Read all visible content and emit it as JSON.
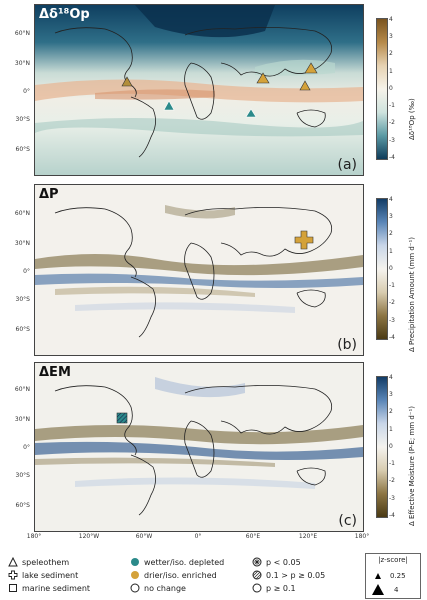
{
  "panels": [
    {
      "title": "Δδ¹⁸Op",
      "letter": "(a)",
      "cbar_label": "Δδ¹⁸Op (‰)",
      "cbar_ticks": [
        "4",
        "3",
        "2",
        "1",
        "0",
        "-1",
        "-2",
        "-3",
        "-4"
      ],
      "colors": {
        "pos": "#9a6a2a",
        "neg": "#0f4a6a"
      }
    },
    {
      "title": "ΔP",
      "letter": "(b)",
      "cbar_label": "Δ Precipitation Amount (mm d⁻¹)",
      "cbar_ticks": [
        "4",
        "3",
        "2",
        "1",
        "0",
        "-1",
        "-2",
        "-3",
        "-4"
      ],
      "colors": {
        "pos": "#123c66",
        "neg": "#5e4a1e"
      }
    },
    {
      "title": "ΔEM",
      "letter": "(c)",
      "cbar_label": "Δ Effective Moisture (P-E; mm d⁻¹)",
      "cbar_ticks": [
        "4",
        "3",
        "2",
        "1",
        "0",
        "-1",
        "-2",
        "-3",
        "-4"
      ],
      "colors": {
        "pos": "#123c66",
        "neg": "#5e4a1e"
      }
    }
  ],
  "lat_labels": [
    "60°N",
    "30°N",
    "0°",
    "30°S",
    "60°S"
  ],
  "lon_labels": [
    "180°",
    "120°W",
    "60°W",
    "0°",
    "60°E",
    "120°E",
    "180°"
  ],
  "legend": {
    "archives": [
      "speleothem",
      "lake sediment",
      "marine sediment"
    ],
    "direction": [
      "wetter/iso. depleted",
      "drier/iso. enriched",
      "no change"
    ],
    "significance": [
      "p < 0.05",
      "0.1 > p ≥ 0.05",
      "p ≥ 0.1"
    ],
    "zscore_title": "|z-score|",
    "zscore_values": [
      "0.25",
      "4"
    ],
    "colors": {
      "wetter": "#2b8a8a",
      "drier": "#d4a23a"
    }
  }
}
